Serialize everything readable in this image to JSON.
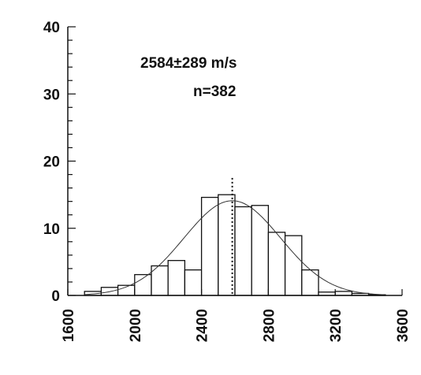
{
  "chart_data": {
    "type": "bar",
    "title": "",
    "xlabel": "",
    "ylabel": "",
    "xlim": [
      1600,
      3600
    ],
    "ylim": [
      0,
      40
    ],
    "bin_width": 100,
    "bins": [
      {
        "x0": 1700,
        "x1": 1800,
        "value": 0.6
      },
      {
        "x0": 1800,
        "x1": 1900,
        "value": 1.2
      },
      {
        "x0": 1900,
        "x1": 2000,
        "value": 1.5
      },
      {
        "x0": 2000,
        "x1": 2100,
        "value": 3.1
      },
      {
        "x0": 2100,
        "x1": 2200,
        "value": 4.4
      },
      {
        "x0": 2200,
        "x1": 2300,
        "value": 5.2
      },
      {
        "x0": 2300,
        "x1": 2400,
        "value": 3.8
      },
      {
        "x0": 2400,
        "x1": 2500,
        "value": 14.6
      },
      {
        "x0": 2500,
        "x1": 2600,
        "value": 15.0
      },
      {
        "x0": 2600,
        "x1": 2700,
        "value": 13.2
      },
      {
        "x0": 2700,
        "x1": 2800,
        "value": 13.4
      },
      {
        "x0": 2800,
        "x1": 2900,
        "value": 9.4
      },
      {
        "x0": 2900,
        "x1": 3000,
        "value": 8.9
      },
      {
        "x0": 3000,
        "x1": 3100,
        "value": 3.8
      },
      {
        "x0": 3100,
        "x1": 3200,
        "value": 0.5
      },
      {
        "x0": 3200,
        "x1": 3300,
        "value": 0.6
      },
      {
        "x0": 3300,
        "x1": 3400,
        "value": 0.3
      },
      {
        "x0": 3400,
        "x1": 3500,
        "value": 0.1
      }
    ],
    "x_ticks": [
      1600,
      2000,
      2400,
      2800,
      3200,
      3600
    ],
    "y_ticks": [
      0,
      10,
      20,
      30,
      40
    ],
    "fit_curve": {
      "type": "normal",
      "mean": 2584,
      "sd": 289,
      "peak": 14.1
    },
    "mean_line_x": 2584,
    "annotations": [
      "2584±289 m/s",
      "n=382"
    ],
    "grid": false,
    "legend": "none"
  }
}
